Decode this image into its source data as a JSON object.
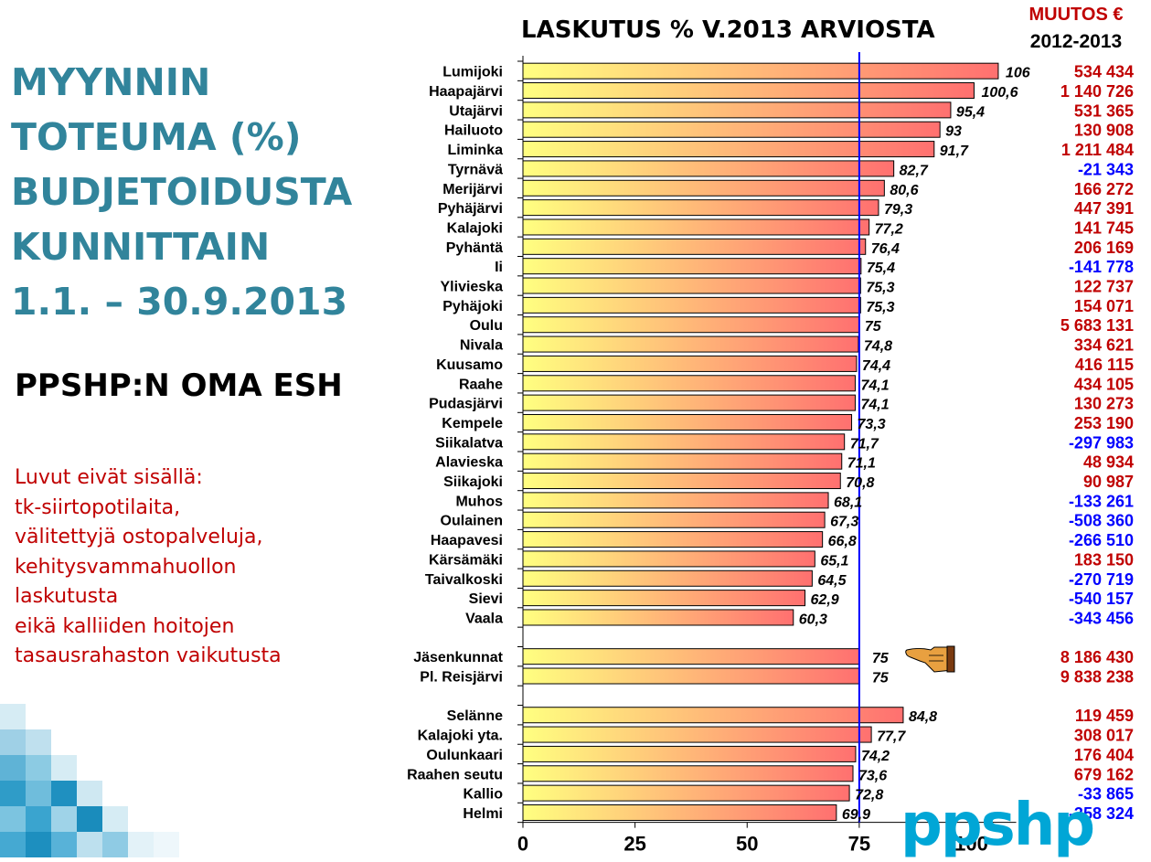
{
  "slide": {
    "title_lines": [
      "MYYNNIN",
      "TOTEUMA (%)",
      "BUDJETOIDUSTA",
      "KUNNITTAIN",
      "1.1. – 30.9.2013"
    ],
    "subtitle": "PPSHP:N OMA ESH",
    "notes": [
      "Luvut eivät sisällä:",
      "tk-siirtopotilaita,",
      "välitettyjä ostopalveluja,",
      "kehitysvammahuollon",
      "laskutusta",
      "eikä kalliiden hoitojen",
      "tasausrahaston vaikutusta"
    ],
    "logo": "ppshp"
  },
  "chart_data": {
    "type": "bar",
    "orientation": "horizontal",
    "title": "LASKUTUS % V.2013 ARVIOSTA",
    "change_header": [
      "MUUTOS €",
      "2012-2013"
    ],
    "xlim": [
      0,
      110
    ],
    "xticks": [
      0,
      25,
      50,
      75,
      100
    ],
    "reference_line": 75,
    "colors": {
      "bar_start": "#ffff80",
      "bar_end": "#ff7070",
      "reference": "#0000ff",
      "positive": "#c00000",
      "negative": "#0000ff"
    },
    "groups": [
      {
        "rows": [
          {
            "label": "Lumijoki",
            "value": 106,
            "value_label": "106",
            "change": "534 434"
          },
          {
            "label": "Haapajärvi",
            "value": 100.6,
            "value_label": "100,6",
            "change": "1 140 726"
          },
          {
            "label": "Utajärvi",
            "value": 95.4,
            "value_label": "95,4",
            "change": "531 365"
          },
          {
            "label": "Hailuoto",
            "value": 93,
            "value_label": "93",
            "change": "130 908"
          },
          {
            "label": "Liminka",
            "value": 91.7,
            "value_label": "91,7",
            "change": "1 211 484"
          },
          {
            "label": "Tyrnävä",
            "value": 82.7,
            "value_label": "82,7",
            "change": "-21 343"
          },
          {
            "label": "Merijärvi",
            "value": 80.6,
            "value_label": "80,6",
            "change": "166 272"
          },
          {
            "label": "Pyhäjärvi",
            "value": 79.3,
            "value_label": "79,3",
            "change": "447 391"
          },
          {
            "label": "Kalajoki",
            "value": 77.2,
            "value_label": "77,2",
            "change": "141 745"
          },
          {
            "label": "Pyhäntä",
            "value": 76.4,
            "value_label": "76,4",
            "change": "206 169"
          },
          {
            "label": "Ii",
            "value": 75.4,
            "value_label": "75,4",
            "change": "-141 778"
          },
          {
            "label": "Ylivieska",
            "value": 75.3,
            "value_label": "75,3",
            "change": "122 737"
          },
          {
            "label": "Pyhäjoki",
            "value": 75.3,
            "value_label": "75,3",
            "change": "154 071"
          },
          {
            "label": "Oulu",
            "value": 75,
            "value_label": "75",
            "change": "5 683 131"
          },
          {
            "label": "Nivala",
            "value": 74.8,
            "value_label": "74,8",
            "change": "334 621"
          },
          {
            "label": "Kuusamo",
            "value": 74.4,
            "value_label": "74,4",
            "change": "416 115"
          },
          {
            "label": "Raahe",
            "value": 74.1,
            "value_label": "74,1",
            "change": "434 105"
          },
          {
            "label": "Pudasjärvi",
            "value": 74.1,
            "value_label": "74,1",
            "change": "130 273"
          },
          {
            "label": "Kempele",
            "value": 73.3,
            "value_label": "73,3",
            "change": "253 190"
          },
          {
            "label": "Siikalatva",
            "value": 71.7,
            "value_label": "71,7",
            "change": "-297 983"
          },
          {
            "label": "Alavieska",
            "value": 71.1,
            "value_label": "71,1",
            "change": "48 934"
          },
          {
            "label": "Siikajoki",
            "value": 70.8,
            "value_label": "70,8",
            "change": "90 987"
          },
          {
            "label": "Muhos",
            "value": 68.1,
            "value_label": "68,1",
            "change": "-133 261"
          },
          {
            "label": "Oulainen",
            "value": 67.3,
            "value_label": "67,3",
            "change": "-508 360"
          },
          {
            "label": "Haapavesi",
            "value": 66.8,
            "value_label": "66,8",
            "change": "-266 510"
          },
          {
            "label": "Kärsämäki",
            "value": 65.1,
            "value_label": "65,1",
            "change": "183 150"
          },
          {
            "label": "Taivalkoski",
            "value": 64.5,
            "value_label": "64,5",
            "change": "-270 719"
          },
          {
            "label": "Sievi",
            "value": 62.9,
            "value_label": "62,9",
            "change": "-540 157"
          },
          {
            "label": "Vaala",
            "value": 60.3,
            "value_label": "60,3",
            "change": "-343 456"
          }
        ]
      },
      {
        "rows": [
          {
            "label": "Jäsenkunnat",
            "value": 75,
            "value_label": "75",
            "change": "8 186 430"
          },
          {
            "label": "Pl. Reisjärvi",
            "value": 75,
            "value_label": "75",
            "change": "9 838 238"
          }
        ]
      },
      {
        "rows": [
          {
            "label": "Selänne",
            "value": 84.8,
            "value_label": "84,8",
            "change": "119 459"
          },
          {
            "label": "Kalajoki yta.",
            "value": 77.7,
            "value_label": "77,7",
            "change": "308 017"
          },
          {
            "label": "Oulunkaari",
            "value": 74.2,
            "value_label": "74,2",
            "change": "176 404"
          },
          {
            "label": "Raahen seutu",
            "value": 73.6,
            "value_label": "73,6",
            "change": "679 162"
          },
          {
            "label": "Kallio",
            "value": 72.8,
            "value_label": "72,8",
            "change": "-33 865"
          },
          {
            "label": "Helmi",
            "value": 69.9,
            "value_label": "69,9",
            "change": "-358 324"
          }
        ]
      }
    ]
  }
}
